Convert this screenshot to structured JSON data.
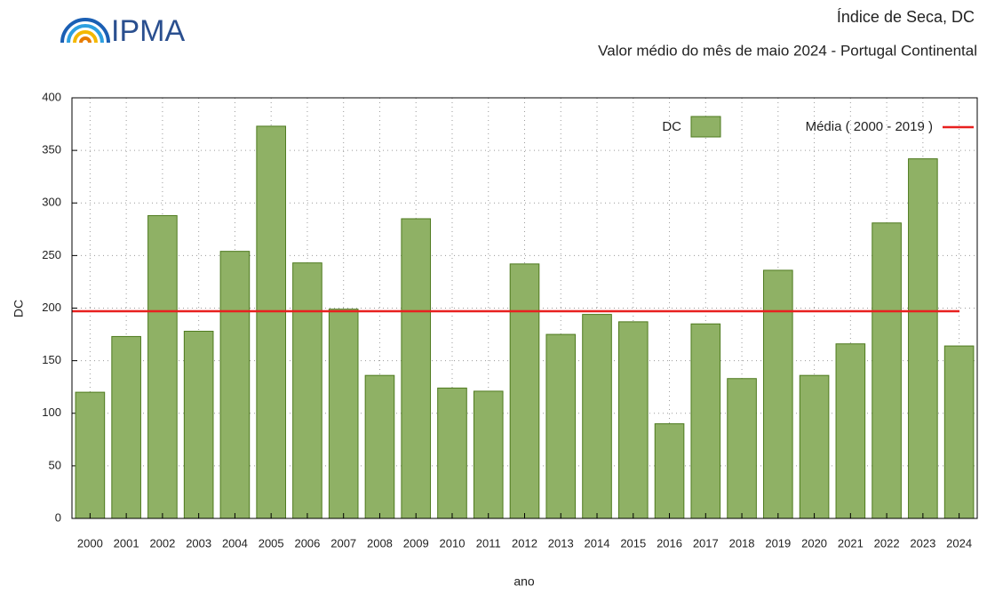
{
  "logo": "IPMA",
  "chart_data": {
    "type": "bar",
    "title": "Índice de Seca, DC",
    "subtitle": "Valor médio do mês de maio 2024 - Portugal Continental",
    "ylabel": "DC",
    "xlabel": "ano",
    "categories": [
      "2000",
      "2001",
      "2002",
      "2003",
      "2004",
      "2005",
      "2006",
      "2007",
      "2008",
      "2009",
      "2010",
      "2011",
      "2012",
      "2013",
      "2014",
      "2015",
      "2016",
      "2017",
      "2018",
      "2019",
      "2020",
      "2021",
      "2022",
      "2023",
      "2024"
    ],
    "series": [
      {
        "name": "DC",
        "color": "#8fb165",
        "edge": "#4e7a1e",
        "values": [
          120,
          173,
          288,
          178,
          254,
          373,
          243,
          199,
          136,
          285,
          124,
          121,
          242,
          175,
          194,
          187,
          90,
          185,
          133,
          236,
          136,
          166,
          281,
          342,
          164
        ]
      }
    ],
    "reference_line": {
      "name": "Média ( 2000 - 2019 )",
      "value": 197,
      "color": "#e8201f"
    },
    "ylim": [
      0,
      400
    ],
    "yticks": [
      0,
      50,
      100,
      150,
      200,
      250,
      300,
      350,
      400
    ],
    "grid": true
  }
}
